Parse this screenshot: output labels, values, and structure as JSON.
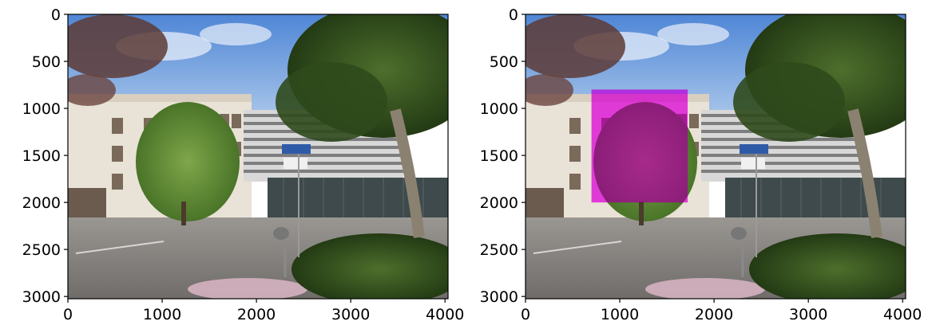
{
  "chart_data": [
    {
      "type": "image",
      "content": "photo",
      "xlim": [
        0,
        4032
      ],
      "ylim": [
        3024,
        0
      ],
      "xticks": [
        0,
        1000,
        2000,
        3000,
        4000
      ],
      "yticks": [
        0,
        500,
        1000,
        1500,
        2000,
        2500,
        3000
      ],
      "xtick_labels": [
        "0",
        "1000",
        "2000",
        "3000",
        "4000"
      ],
      "ytick_labels": [
        "0",
        "500",
        "1000",
        "1500",
        "2000",
        "2500",
        "3000"
      ],
      "grid": false
    },
    {
      "type": "image",
      "content": "photo with highlighted region",
      "xlim": [
        0,
        4032
      ],
      "ylim": [
        3024,
        0
      ],
      "xticks": [
        0,
        1000,
        2000,
        3000,
        4000
      ],
      "yticks": [
        0,
        500,
        1000,
        1500,
        2000,
        2500,
        3000
      ],
      "xtick_labels": [
        "0",
        "1000",
        "2000",
        "3000",
        "4000"
      ],
      "ytick_labels": [
        "0",
        "500",
        "1000",
        "1500",
        "2000",
        "2500",
        "3000"
      ],
      "grid": false,
      "highlight": {
        "x0": 700,
        "x1": 1720,
        "y0": 800,
        "y1": 2000,
        "color": "#e600e6",
        "opacity": 0.72
      }
    }
  ],
  "colors": {
    "sky": "#6f9fdc",
    "building": "#e8e2d8",
    "foliage": "#3c5a24",
    "road": "#8d8a87",
    "petals": "#dcb8c8",
    "highlight": "#e600e6"
  }
}
